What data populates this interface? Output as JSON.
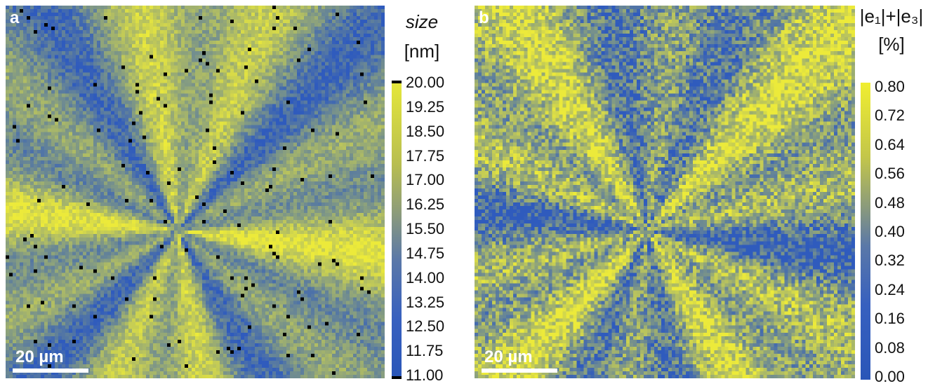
{
  "panel_a": {
    "letter": "a",
    "scale_label": "20 µm",
    "colorbar_title_line1": "size",
    "colorbar_title_line2": "[nm]",
    "ticks": [
      "20.00",
      "19.25",
      "18.50",
      "17.75",
      "17.00",
      "16.25",
      "15.50",
      "14.75",
      "14.00",
      "13.25",
      "12.50",
      "11.75",
      "11.00"
    ]
  },
  "panel_b": {
    "letter": "b",
    "scale_label": "20 µm",
    "colorbar_title_line1": "|e₁|+|e₃|",
    "colorbar_title_line2": "[%]",
    "ticks": [
      "0.80",
      "0.72",
      "0.64",
      "0.56",
      "0.48",
      "0.40",
      "0.32",
      "0.24",
      "0.16",
      "0.08",
      "0.00"
    ]
  },
  "colors": {
    "low": "#2f5bbd",
    "high": "#ecea3a",
    "missing": "#000000"
  }
}
